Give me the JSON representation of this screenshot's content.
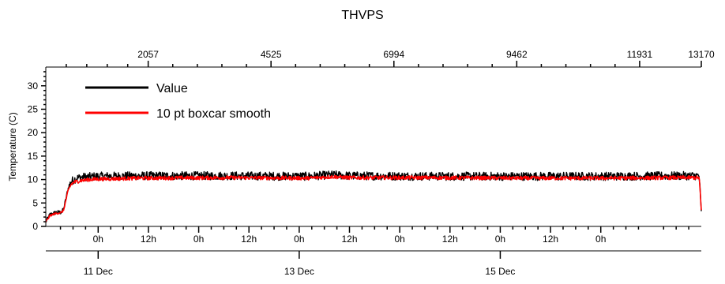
{
  "chart_data": {
    "type": "line",
    "title": "THVPS",
    "ylabel": "Temperature (C)",
    "ylim": [
      0,
      34
    ],
    "yticks": [
      0,
      5,
      10,
      15,
      20,
      25,
      30
    ],
    "top_axis": {
      "range": [
        0,
        13170
      ],
      "ticks": [
        2057,
        4525,
        6994,
        9462,
        11931,
        13170
      ]
    },
    "time_axis": {
      "range_hours": [
        -12.5,
        144
      ],
      "hour_tick_labels": [
        "0h",
        "12h",
        "0h",
        "12h",
        "0h",
        "12h",
        "0h",
        "12h",
        "0h",
        "12h",
        "0h"
      ],
      "hour_tick_positions": [
        0,
        12,
        24,
        36,
        48,
        60,
        72,
        84,
        96,
        108,
        120
      ],
      "day_labels": [
        "11 Dec",
        "13 Dec",
        "15 Dec"
      ],
      "day_positions": [
        0,
        48,
        96
      ]
    },
    "legend_placement": "top-left",
    "series": [
      {
        "name": "Value",
        "color": "#000000",
        "noise": 0.9,
        "x_hours": [
          -12.5,
          -11.5,
          -10,
          -9,
          -8.3,
          -7.8,
          -7.2,
          -6.5,
          -5.8,
          -5,
          -4,
          -2,
          0,
          10,
          30,
          50,
          54,
          56,
          60,
          80,
          100,
          120,
          140,
          143.5,
          144
        ],
        "y": [
          1.0,
          2.5,
          3.0,
          3.0,
          3.5,
          5.5,
          8.0,
          9.5,
          10.0,
          10.3,
          10.5,
          10.6,
          10.7,
          10.8,
          10.8,
          10.7,
          10.9,
          11.0,
          10.8,
          10.7,
          10.7,
          10.7,
          10.8,
          10.8,
          3.0
        ]
      },
      {
        "name": "10 pt boxcar smooth",
        "color": "#ff0000",
        "noise": 0.4,
        "x_hours": [
          -12.5,
          -11.5,
          -10,
          -9,
          -8.3,
          -7.8,
          -7.2,
          -6.5,
          -5.8,
          -5,
          -4,
          -2,
          0,
          10,
          30,
          50,
          54,
          56,
          60,
          80,
          100,
          120,
          140,
          143.5,
          144
        ],
        "y": [
          1.0,
          2.3,
          2.8,
          2.9,
          3.3,
          5.2,
          7.6,
          8.9,
          9.4,
          9.6,
          9.8,
          10.0,
          10.1,
          10.3,
          10.4,
          10.3,
          10.5,
          10.6,
          10.4,
          10.4,
          10.3,
          10.3,
          10.4,
          10.4,
          3.5
        ]
      }
    ]
  }
}
